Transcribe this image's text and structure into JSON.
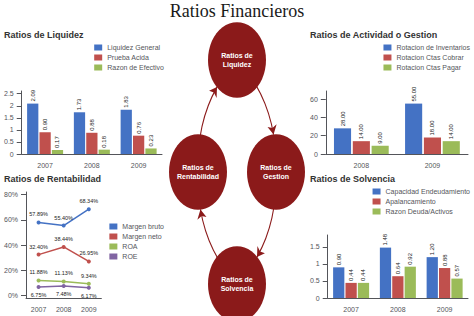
{
  "chart_data": [
    {
      "type": "graph",
      "title": "Ratios Financieros",
      "categories": [
        "Ratios de\nLiquidez",
        "Ratios de\nGestion",
        "Ratios de\nSolvencia",
        "Ratios de\nRentabilidad"
      ],
      "color": "#8B1A1A"
    },
    {
      "type": "bar",
      "title": "Ratios de Liquidez",
      "categories": [
        "2007",
        "2008",
        "2009"
      ],
      "series": [
        {
          "name": "Liquidez General",
          "color": "#4472C4",
          "values": [
            2.09,
            1.73,
            1.83
          ],
          "value_labels": [
            "2.09",
            "1.73",
            "1.83"
          ]
        },
        {
          "name": "Prueba Acida",
          "color": "#C0504D",
          "values": [
            0.9,
            0.88,
            0.76
          ],
          "value_labels": [
            "0.90",
            "0.88",
            "0.76"
          ]
        },
        {
          "name": "Razon de Efectivo",
          "color": "#9BBB59",
          "values": [
            0.17,
            0.18,
            0.23
          ],
          "value_labels": [
            "0.17",
            "0.18",
            "0.23"
          ]
        }
      ],
      "ylim": [
        0,
        2.6125
      ],
      "yticks": [
        0,
        0.5,
        1,
        1.5,
        2,
        2.5
      ],
      "grid": false,
      "legend": "upper right",
      "data_labels": true
    },
    {
      "type": "bar",
      "title": "Ratios de Actividad o Gestion",
      "categories": [
        "2008",
        "2009"
      ],
      "series": [
        {
          "name": "Rotacion de Inventarios",
          "color": "#4472C4",
          "values": [
            28,
            55
          ],
          "value_labels": [
            "28.00",
            "55.00"
          ]
        },
        {
          "name": "Rotacion Ctas Cobrar",
          "color": "#C0504D",
          "values": [
            14,
            18
          ],
          "value_labels": [
            "14.00",
            "18.00"
          ]
        },
        {
          "name": "Rotacion Ctas Pagar",
          "color": "#9BBB59",
          "values": [
            9,
            14
          ],
          "value_labels": [
            "9.00",
            "14.00"
          ]
        }
      ],
      "ylim": [
        0,
        68.75
      ],
      "yticks": [
        0,
        20,
        40,
        60
      ],
      "grid": false,
      "legend": "upper right",
      "data_labels": true
    },
    {
      "type": "line",
      "title": "Ratios de Rentabilidad",
      "categories": [
        "2007",
        "2008",
        "2009"
      ],
      "series": [
        {
          "name": "Margen bruto",
          "color": "#4472C4",
          "values": [
            57.89,
            55.4,
            68.34
          ],
          "value_labels": [
            "57.89%",
            "55.40%",
            "68.34%"
          ]
        },
        {
          "name": "Margen neto",
          "color": "#C0504D",
          "values": [
            32.4,
            38.44,
            26.95
          ],
          "value_labels": [
            "32.40%",
            "38.44%",
            "26.95%"
          ]
        },
        {
          "name": "ROA",
          "color": "#9BBB59",
          "values": [
            11.88,
            11.13,
            9.34
          ],
          "value_labels": [
            "11.88%",
            "11.13%",
            "9.34%"
          ]
        },
        {
          "name": "ROE",
          "color": "#8064A2",
          "values": [
            6.75,
            7.48,
            6.17
          ],
          "value_labels": [
            "6.75%",
            "7.48%",
            "6.17%"
          ]
        }
      ],
      "ylim": [
        -2,
        82.008
      ],
      "yticks": [
        {
          "value": 0,
          "label": "0%"
        },
        {
          "value": 20,
          "label": "20%"
        },
        {
          "value": 40,
          "label": "40%"
        },
        {
          "value": 60,
          "label": "60%"
        },
        {
          "value": 80,
          "label": "80%"
        }
      ],
      "grid": false,
      "legend": "right",
      "data_labels": true,
      "marker": "circle"
    },
    {
      "type": "bar",
      "title": "Ratios de Solvencia",
      "categories": [
        "2007",
        "2008",
        "2009"
      ],
      "series": [
        {
          "name": "Capacidad Endeudamiento",
          "color": "#4472C4",
          "values": [
            0.9,
            1.48,
            1.2
          ],
          "value_labels": [
            "0.90",
            "1.48",
            "1.20"
          ]
        },
        {
          "name": "Apalancamiento",
          "color": "#C0504D",
          "values": [
            0.444,
            0.64,
            0.88
          ],
          "value_labels": [
            "0.44",
            "0.64",
            "0.88"
          ]
        },
        {
          "name": "Razon Deuda/Activos",
          "color": "#9BBB59",
          "values": [
            0.444,
            0.92,
            0.57
          ],
          "value_labels": [
            "0.44",
            "0.92",
            "0.57"
          ]
        }
      ],
      "ylim": [
        0,
        1.85
      ],
      "yticks": [
        0,
        0.5,
        1,
        1.5
      ],
      "grid": false,
      "legend": "upper right",
      "data_labels": true
    }
  ]
}
